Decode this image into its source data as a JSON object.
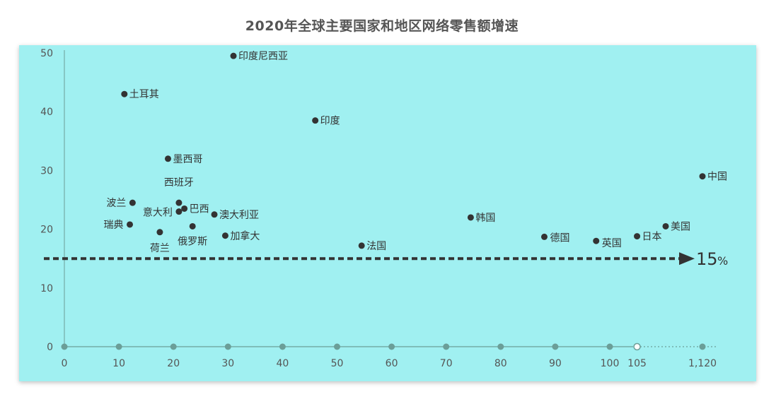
{
  "title": "2020年全球主要国家和地区网络零售额增速",
  "chart_data": {
    "type": "scatter",
    "title": "2020年全球主要国家和地区网络零售额增速",
    "xlabel": "",
    "ylabel": "",
    "x_ticks": [
      "0",
      "10",
      "20",
      "30",
      "40",
      "50",
      "60",
      "70",
      "80",
      "90",
      "100",
      "105",
      "1,120"
    ],
    "y_ticks": [
      "0",
      "10",
      "20",
      "30",
      "40",
      "50"
    ],
    "ylim": [
      0,
      50
    ],
    "x_axis_break": "105",
    "grid": false,
    "points": [
      {
        "label": "印度尼西亚",
        "x": 31,
        "y": 49.5
      },
      {
        "label": "土耳其",
        "x": 11,
        "y": 43
      },
      {
        "label": "印度",
        "x": 46,
        "y": 38.5
      },
      {
        "label": "墨西哥",
        "x": 19,
        "y": 32
      },
      {
        "label": "中国",
        "x": 1120,
        "y": 29
      },
      {
        "label": "西班牙",
        "x": 21,
        "y": 24.5
      },
      {
        "label": "波兰",
        "x": 12.5,
        "y": 24.5
      },
      {
        "label": "意大利",
        "x": 21,
        "y": 23
      },
      {
        "label": "巴西",
        "x": 22,
        "y": 23.5
      },
      {
        "label": "澳大利亚",
        "x": 27.5,
        "y": 22.5
      },
      {
        "label": "韩国",
        "x": 74.5,
        "y": 22
      },
      {
        "label": "瑞典",
        "x": 12,
        "y": 20.8
      },
      {
        "label": "俄罗斯",
        "x": 23.5,
        "y": 20.5
      },
      {
        "label": "美国",
        "x": 110,
        "y": 20.5
      },
      {
        "label": "荷兰",
        "x": 17.5,
        "y": 19.5
      },
      {
        "label": "加拿大",
        "x": 29.5,
        "y": 18.9
      },
      {
        "label": "德国",
        "x": 88,
        "y": 18.7
      },
      {
        "label": "日本",
        "x": 105,
        "y": 18.8
      },
      {
        "label": "英国",
        "x": 97.5,
        "y": 18
      },
      {
        "label": "法国",
        "x": 54.5,
        "y": 17.2
      }
    ],
    "reference_line": {
      "y": 15,
      "label": "15",
      "unit": "%"
    },
    "colors": {
      "background": "#a0f0f1",
      "point": "#333333",
      "axis": "#6b9e98",
      "reference": "#333333"
    }
  }
}
